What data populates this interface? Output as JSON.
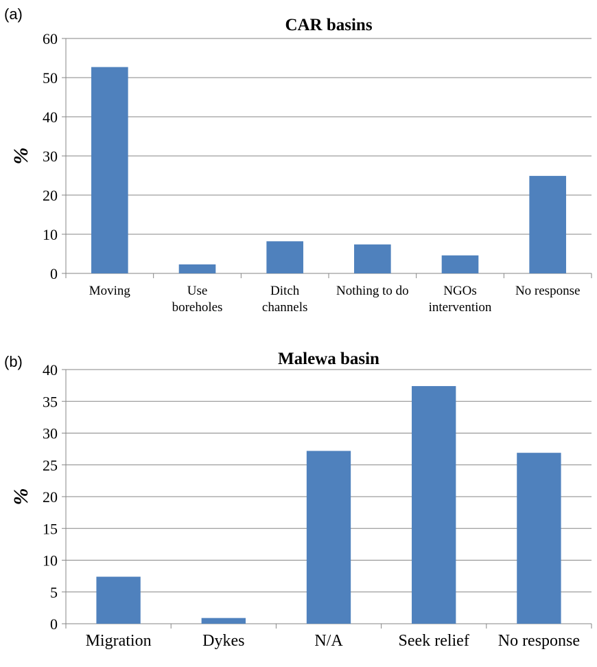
{
  "chart_data": [
    {
      "type": "bar",
      "panel_label": "(a)",
      "title": "CAR basins",
      "ylabel": "%",
      "ylim": [
        0,
        60
      ],
      "yticks": [
        "0",
        "10",
        "20",
        "30",
        "40",
        "50",
        "60"
      ],
      "grid": true,
      "categories": [
        [
          "Moving"
        ],
        [
          "Use",
          "boreholes"
        ],
        [
          "Ditch",
          "channels"
        ],
        [
          "Nothing to do"
        ],
        [
          "NGOs",
          "intervention"
        ],
        [
          "No response"
        ]
      ],
      "values": [
        52.7,
        2.3,
        8.2,
        7.4,
        4.6,
        24.9
      ],
      "bar_color": "#4f81bd"
    },
    {
      "type": "bar",
      "panel_label": "(b)",
      "title": "Malewa basin",
      "ylabel": "%",
      "ylim": [
        0,
        40
      ],
      "yticks": [
        "0",
        "5",
        "10",
        "15",
        "20",
        "25",
        "30",
        "35",
        "40"
      ],
      "grid": true,
      "categories": [
        [
          "Migration"
        ],
        [
          "Dykes"
        ],
        [
          "N/A"
        ],
        [
          "Seek relief"
        ],
        [
          "No response"
        ]
      ],
      "values": [
        7.4,
        0.9,
        27.2,
        37.4,
        26.9
      ],
      "bar_color": "#4f81bd"
    }
  ]
}
